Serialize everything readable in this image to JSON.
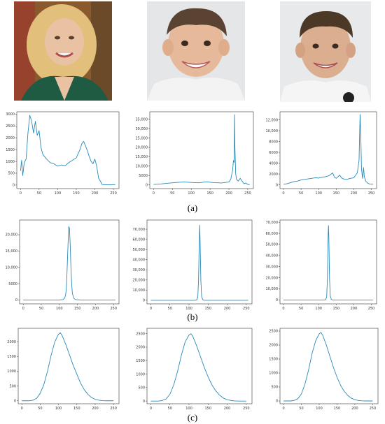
{
  "panel_labels": [
    "(a)",
    "(b)",
    "(c)"
  ],
  "photos": [
    {
      "subject": "smiling blonde woman portrait",
      "bg": "#8a5a2e",
      "skin": "#e9c2a4",
      "hair": "#e2bf7a",
      "cloth": "#1f5a43"
    },
    {
      "subject": "smiling young boy portrait",
      "bg": "#e4e6e8",
      "skin": "#e6b99a",
      "hair": "#5a4332",
      "cloth": "#f3f3f3"
    },
    {
      "subject": "smiling young boy portrait",
      "bg": "#e8e9ea",
      "skin": "#dcae90",
      "hair": "#4c3827",
      "cloth": "#f5f5f5"
    }
  ],
  "colors": {
    "line": "#2a8ab8",
    "axis": "#333333"
  },
  "chart_data": [
    {
      "type": "line",
      "row": "a",
      "xticks": [
        0,
        50,
        100,
        150,
        200,
        250
      ],
      "yticks": [
        0,
        500,
        1000,
        1500,
        2000,
        2500,
        3000
      ],
      "ytick_labels": [
        "0",
        "500",
        "1000",
        "1500",
        "2000",
        "2500",
        "3000"
      ],
      "xlim": [
        -10,
        265
      ],
      "ylim": [
        -150,
        3100
      ],
      "x": [
        0,
        3,
        6,
        10,
        15,
        20,
        25,
        30,
        35,
        40,
        45,
        50,
        55,
        60,
        70,
        80,
        90,
        100,
        110,
        120,
        130,
        140,
        150,
        160,
        165,
        170,
        175,
        180,
        185,
        190,
        195,
        200,
        205,
        210,
        220,
        240,
        255
      ],
      "values": [
        600,
        1050,
        400,
        950,
        1100,
        2200,
        2950,
        2700,
        2200,
        2700,
        2100,
        2300,
        1600,
        1300,
        1100,
        950,
        900,
        800,
        850,
        820,
        950,
        1050,
        1150,
        1500,
        1750,
        1850,
        1650,
        1450,
        1200,
        1000,
        900,
        1100,
        800,
        300,
        20,
        10,
        10
      ]
    },
    {
      "type": "line",
      "row": "a",
      "xticks": [
        0,
        50,
        100,
        150,
        200,
        250
      ],
      "yticks": [
        0,
        5000,
        10000,
        15000,
        20000,
        25000,
        30000,
        35000
      ],
      "ytick_labels": [
        "0",
        "5000",
        "10,000",
        "15,000",
        "20,000",
        "25,000",
        "30,000",
        "35,000"
      ],
      "xlim": [
        -10,
        265
      ],
      "ylim": [
        -2000,
        39000
      ],
      "x": [
        0,
        20,
        40,
        60,
        80,
        100,
        120,
        140,
        160,
        180,
        200,
        205,
        210,
        212,
        214,
        215,
        216,
        218,
        220,
        225,
        230,
        235,
        240,
        245,
        250,
        255
      ],
      "values": [
        200,
        500,
        900,
        1300,
        1500,
        1300,
        1100,
        1600,
        1200,
        1000,
        1500,
        3000,
        8000,
        13000,
        12000,
        37500,
        20000,
        6000,
        3000,
        2000,
        3500,
        2000,
        600,
        1000,
        200,
        100
      ]
    },
    {
      "type": "line",
      "row": "a",
      "xticks": [
        0,
        50,
        100,
        150,
        200,
        250
      ],
      "yticks": [
        0,
        2000,
        4000,
        6000,
        8000,
        10000,
        12000
      ],
      "ytick_labels": [
        "0",
        "2000",
        "4000",
        "6000",
        "8000",
        "10,000",
        "12,000"
      ],
      "xlim": [
        -10,
        265
      ],
      "ylim": [
        -700,
        13500
      ],
      "x": [
        0,
        10,
        20,
        30,
        40,
        50,
        60,
        70,
        80,
        90,
        100,
        110,
        120,
        130,
        140,
        145,
        150,
        160,
        165,
        170,
        180,
        190,
        200,
        210,
        215,
        218,
        220,
        222,
        225,
        228,
        230,
        235,
        240,
        245,
        255
      ],
      "values": [
        100,
        200,
        400,
        600,
        700,
        900,
        1000,
        1100,
        1200,
        1300,
        1250,
        1400,
        1500,
        1700,
        2200,
        1400,
        1200,
        1800,
        1300,
        1100,
        1000,
        1200,
        1300,
        2200,
        4500,
        13000,
        9000,
        3000,
        1200,
        3200,
        1500,
        600,
        300,
        150,
        100
      ]
    },
    {
      "type": "line",
      "row": "b",
      "xticks": [
        0,
        50,
        100,
        150,
        200,
        250
      ],
      "yticks": [
        0,
        5000,
        10000,
        15000,
        20000
      ],
      "ytick_labels": [
        "0",
        "5000",
        "10,000",
        "15,000",
        "20,000"
      ],
      "xlim": [
        -10,
        265
      ],
      "ylim": [
        -1200,
        24500
      ],
      "x": [
        0,
        100,
        110,
        115,
        118,
        120,
        122,
        124,
        126,
        128,
        130,
        132,
        134,
        136,
        140,
        145,
        160,
        255
      ],
      "values": [
        0,
        0,
        100,
        600,
        2000,
        5000,
        11000,
        17000,
        22500,
        22000,
        17000,
        10000,
        5000,
        2000,
        500,
        100,
        0,
        0
      ]
    },
    {
      "type": "line",
      "row": "b",
      "xticks": [
        0,
        50,
        100,
        150,
        200,
        250
      ],
      "yticks": [
        0,
        10000,
        20000,
        30000,
        40000,
        50000,
        60000,
        70000
      ],
      "ytick_labels": [
        "0",
        "10,000",
        "20,000",
        "30,000",
        "40,000",
        "50,000",
        "60,000",
        "70,000"
      ],
      "xlim": [
        -10,
        265
      ],
      "ylim": [
        -3500,
        79000
      ],
      "x": [
        0,
        115,
        120,
        123,
        125,
        127,
        128,
        129,
        131,
        133,
        136,
        140,
        255
      ],
      "values": [
        0,
        0,
        300,
        3000,
        20000,
        60000,
        74000,
        60000,
        20000,
        4000,
        500,
        0,
        0
      ]
    },
    {
      "type": "line",
      "row": "b",
      "xticks": [
        0,
        50,
        100,
        150,
        200,
        250
      ],
      "yticks": [
        0,
        10000,
        20000,
        30000,
        40000,
        50000,
        60000,
        70000
      ],
      "ytick_labels": [
        "0",
        "10,000",
        "20,000",
        "30,000",
        "40,000",
        "50,000",
        "60,000",
        "70,000"
      ],
      "xlim": [
        -10,
        265
      ],
      "ylim": [
        -3500,
        72000
      ],
      "x": [
        0,
        115,
        120,
        123,
        125,
        127,
        128,
        129,
        131,
        133,
        136,
        140,
        255
      ],
      "values": [
        0,
        0,
        300,
        3000,
        20000,
        58000,
        67000,
        58000,
        20000,
        4000,
        500,
        0,
        0
      ]
    },
    {
      "type": "line",
      "row": "c",
      "xticks": [
        0,
        50,
        100,
        150,
        200,
        250
      ],
      "yticks": [
        0,
        500,
        1000,
        1500,
        2000
      ],
      "ytick_labels": [
        "0",
        "500",
        "1000",
        "1500",
        "2000"
      ],
      "xlim": [
        -10,
        265
      ],
      "ylim": [
        -100,
        2450
      ],
      "x": [
        0,
        20,
        30,
        40,
        50,
        60,
        70,
        80,
        90,
        100,
        105,
        110,
        120,
        130,
        140,
        150,
        160,
        170,
        180,
        190,
        200,
        210,
        220,
        230,
        250
      ],
      "values": [
        0,
        0,
        20,
        80,
        250,
        550,
        1000,
        1550,
        2000,
        2250,
        2300,
        2200,
        1900,
        1550,
        1200,
        900,
        600,
        380,
        220,
        110,
        50,
        20,
        5,
        0,
        0
      ]
    },
    {
      "type": "line",
      "row": "c",
      "xticks": [
        0,
        50,
        100,
        150,
        200,
        250
      ],
      "yticks": [
        0,
        500,
        1000,
        1500,
        2000,
        2500
      ],
      "ytick_labels": [
        "0",
        "500",
        "1000",
        "1500",
        "2000",
        "2500"
      ],
      "xlim": [
        -10,
        265
      ],
      "ylim": [
        -100,
        2700
      ],
      "x": [
        0,
        20,
        30,
        40,
        50,
        60,
        70,
        80,
        90,
        100,
        105,
        110,
        120,
        130,
        140,
        150,
        160,
        170,
        180,
        190,
        200,
        210,
        220,
        230,
        250
      ],
      "values": [
        0,
        0,
        20,
        80,
        250,
        600,
        1100,
        1700,
        2200,
        2450,
        2500,
        2400,
        2050,
        1650,
        1250,
        900,
        600,
        380,
        220,
        110,
        50,
        20,
        5,
        0,
        0
      ]
    },
    {
      "type": "line",
      "row": "c",
      "xticks": [
        0,
        50,
        100,
        150,
        200,
        250
      ],
      "yticks": [
        0,
        500,
        1000,
        1500,
        2000,
        2500
      ],
      "ytick_labels": [
        "0",
        "500",
        "1000",
        "1500",
        "2000",
        "2500"
      ],
      "xlim": [
        -10,
        265
      ],
      "ylim": [
        -100,
        2600
      ],
      "x": [
        0,
        20,
        30,
        40,
        50,
        60,
        70,
        80,
        90,
        100,
        105,
        110,
        120,
        130,
        140,
        150,
        160,
        170,
        180,
        190,
        200,
        210,
        220,
        230,
        250
      ],
      "values": [
        0,
        0,
        20,
        80,
        250,
        600,
        1100,
        1700,
        2150,
        2400,
        2450,
        2350,
        2000,
        1600,
        1200,
        850,
        560,
        350,
        200,
        100,
        45,
        18,
        5,
        0,
        0
      ]
    }
  ]
}
